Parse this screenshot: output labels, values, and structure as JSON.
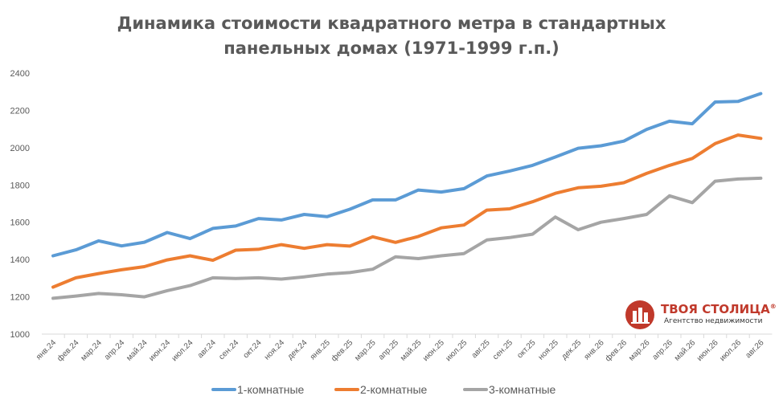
{
  "chart_data": {
    "type": "line",
    "title_lines": [
      "Динамика стоимости квадратного метра в стандартных",
      "панельных домах (1971-1999 г.п.)"
    ],
    "categories": [
      "янв.24",
      "фев.24",
      "мар.24",
      "апр.24",
      "май.24",
      "июн.24",
      "июл.24",
      "авг.24",
      "сен.24",
      "окт.24",
      "ноя.24",
      "дек.24",
      "янв.25",
      "фев.25",
      "мар.25",
      "апр.25",
      "май.25",
      "июн.25",
      "июл.25",
      "авг.25",
      "сен.25",
      "окт.25",
      "ноя.25",
      "дек.25",
      "янв.26",
      "фев.26",
      "мар.26",
      "апр.26",
      "май.26",
      "июн.26",
      "июл.26",
      "авг.26"
    ],
    "ylim": [
      1000,
      2400
    ],
    "yticks": [
      1000,
      1200,
      1400,
      1600,
      1800,
      2000,
      2200,
      2400
    ],
    "grid": false,
    "legend_position": "bottom",
    "series": [
      {
        "name": "1-комнатные",
        "color": "#5b9bd5",
        "values": [
          1420,
          1452,
          1500,
          1473,
          1493,
          1545,
          1512,
          1567,
          1580,
          1620,
          1612,
          1642,
          1630,
          1670,
          1720,
          1720,
          1773,
          1762,
          1780,
          1848,
          1875,
          1905,
          1950,
          1997,
          2010,
          2035,
          2098,
          2142,
          2128,
          2245,
          2248,
          2290
        ]
      },
      {
        "name": "2-комнатные",
        "color": "#ed7d31",
        "values": [
          1252,
          1302,
          1325,
          1345,
          1362,
          1398,
          1420,
          1396,
          1450,
          1455,
          1480,
          1460,
          1480,
          1472,
          1522,
          1492,
          1524,
          1570,
          1585,
          1665,
          1672,
          1710,
          1755,
          1785,
          1793,
          1812,
          1862,
          1905,
          1942,
          2022,
          2068,
          2050
        ]
      },
      {
        "name": "3-комнатные",
        "color": "#a5a5a5",
        "values": [
          1192,
          1204,
          1218,
          1211,
          1200,
          1233,
          1260,
          1302,
          1298,
          1302,
          1295,
          1307,
          1322,
          1330,
          1348,
          1415,
          1405,
          1420,
          1432,
          1505,
          1518,
          1536,
          1628,
          1560,
          1600,
          1620,
          1642,
          1742,
          1705,
          1820,
          1832,
          1836
        ]
      }
    ]
  },
  "logo": {
    "name": "ТВОЯ СТОЛИЦА",
    "mark": "®",
    "subtitle": "Агентство недвижимости",
    "color": "#c0392b"
  }
}
